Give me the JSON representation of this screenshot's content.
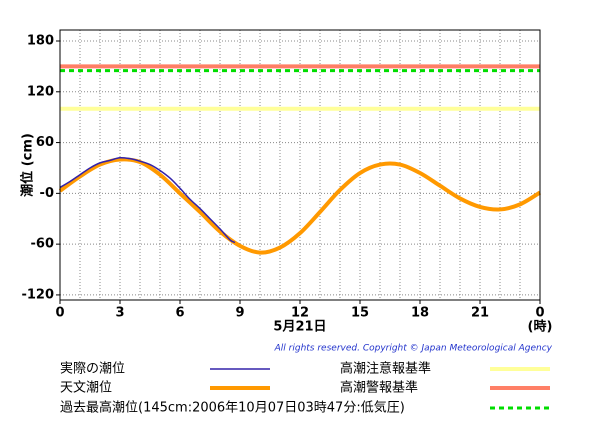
{
  "chart_data": {
    "type": "line",
    "ylabel": "潮位 (cm)",
    "xlabel": "5月21日",
    "xunit": "(時)",
    "credit": "All rights reserved. Copyright © Japan Meteorological Agency",
    "xlim": [
      0,
      24
    ],
    "ylim": [
      -126,
      193
    ],
    "xticks": [
      0,
      3,
      6,
      9,
      12,
      15,
      18,
      21,
      {
        "value": 24,
        "label": "0"
      }
    ],
    "xgrid": [
      1,
      2,
      3,
      4,
      5,
      6,
      7,
      8,
      9,
      10,
      11,
      12,
      13,
      14,
      15,
      16,
      17,
      18,
      19,
      20,
      21,
      22,
      23
    ],
    "yticks": [
      180,
      120,
      60,
      {
        "value": 0,
        "label": "-0"
      },
      -60,
      -120
    ],
    "grid": true,
    "series": [
      {
        "name": "実際の潮位",
        "color": "#3322aa",
        "x": [
          0,
          0.5,
          1,
          1.5,
          2,
          2.5,
          3,
          3.5,
          4,
          4.5,
          5,
          5.5,
          6,
          6.5,
          7,
          7.5,
          8,
          8.5,
          8.75
        ],
        "values": [
          7,
          14,
          22,
          30,
          36,
          39,
          42,
          41,
          38,
          34,
          27,
          18,
          6,
          -7,
          -18,
          -30,
          -42,
          -55,
          -58
        ]
      },
      {
        "name": "天文潮位",
        "color": "#ff9900",
        "x": [
          0,
          1,
          2,
          3,
          4,
          5,
          6,
          7,
          8,
          9,
          10,
          11,
          12,
          13,
          14,
          15,
          16,
          17,
          18,
          19,
          20,
          21,
          22,
          23,
          24
        ],
        "values": [
          3,
          20,
          34,
          40,
          37,
          22,
          0,
          -22,
          -45,
          -62,
          -70,
          -64,
          -47,
          -22,
          4,
          24,
          34,
          34,
          24,
          9,
          -6,
          -16,
          -19,
          -13,
          1
        ]
      }
    ],
    "hlines": [
      {
        "name": "高潮注意報基準",
        "value": 100,
        "color": "#ffff99",
        "dash": false
      },
      {
        "name": "高潮警報基準",
        "value": 150,
        "color": "#ff7f66",
        "dash": false
      },
      {
        "name": "過去最高潮位(145cm:2006年10月07日03時47分:低気圧)",
        "value": 145,
        "color": "#00dd00",
        "dash": true
      }
    ]
  }
}
